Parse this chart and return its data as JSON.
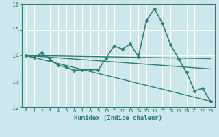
{
  "title": "",
  "xlabel": "Humidex (Indice chaleur)",
  "ylabel": "",
  "background_color": "#cce8ec",
  "grid_color": "#b0d8de",
  "line_color": "#2e7d72",
  "xlim": [
    -0.5,
    23.5
  ],
  "ylim": [
    12,
    16
  ],
  "xticks": [
    0,
    1,
    2,
    3,
    4,
    5,
    6,
    7,
    8,
    9,
    10,
    11,
    12,
    13,
    14,
    15,
    16,
    17,
    18,
    19,
    20,
    21,
    22,
    23
  ],
  "yticks": [
    12,
    13,
    14,
    15,
    16
  ],
  "series": [
    {
      "x": [
        0,
        1,
        2,
        3,
        4,
        5,
        6,
        7,
        8,
        9,
        10,
        11,
        12,
        13,
        14,
        15,
        16,
        17,
        18,
        19,
        20,
        21,
        22,
        23
      ],
      "y": [
        14.0,
        13.92,
        14.1,
        13.85,
        13.62,
        13.55,
        13.42,
        13.45,
        13.45,
        13.45,
        13.9,
        14.38,
        14.25,
        14.45,
        13.95,
        15.35,
        15.82,
        15.25,
        14.42,
        13.88,
        13.35,
        12.62,
        12.72,
        12.22
      ],
      "marker": "D",
      "markersize": 2.5,
      "linewidth": 1.2
    },
    {
      "x": [
        0,
        23
      ],
      "y": [
        14.0,
        13.88
      ],
      "marker": null,
      "linewidth": 1.0
    },
    {
      "x": [
        0,
        23
      ],
      "y": [
        14.0,
        13.48
      ],
      "marker": null,
      "linewidth": 1.0
    },
    {
      "x": [
        0,
        23
      ],
      "y": [
        14.0,
        12.22
      ],
      "marker": null,
      "linewidth": 1.0
    }
  ]
}
